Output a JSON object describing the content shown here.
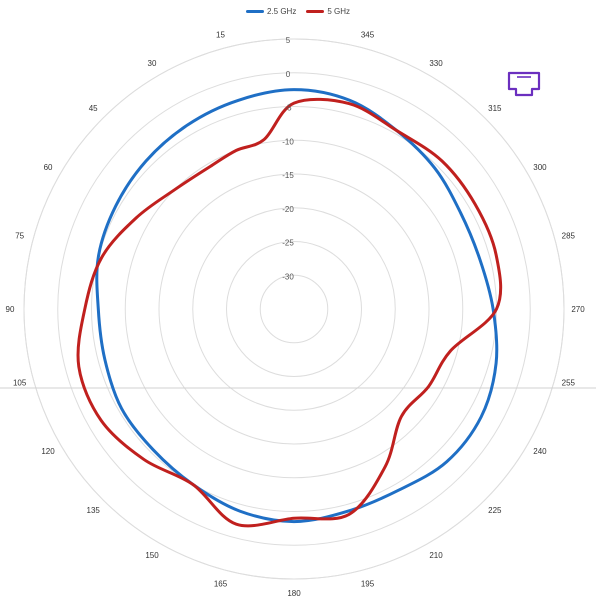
{
  "chart_data": {
    "type": "polar-line",
    "title": "",
    "radial_ticks": [
      "5",
      "0",
      "-5",
      "-10",
      "-15",
      "-20",
      "-25",
      "-30"
    ],
    "radial_range": [
      -35,
      5
    ],
    "angle_labels": [
      "345",
      "330",
      "315",
      "300",
      "285",
      "270",
      "255",
      "240",
      "225",
      "210",
      "195",
      "180",
      "165",
      "150",
      "135",
      "120",
      "105",
      "90",
      "75",
      "60",
      "45",
      "30",
      "15"
    ],
    "legend_placement": "top-center",
    "grid": true,
    "series": [
      {
        "name": "2.5 GHz",
        "color": "#1f6fc5",
        "angles": [
          0,
          15,
          30,
          45,
          60,
          75,
          90,
          105,
          120,
          135,
          150,
          165,
          180,
          195,
          210,
          225,
          240,
          255,
          270,
          285,
          300,
          315,
          330,
          345
        ],
        "values": [
          -2.5,
          -3,
          -3.5,
          -4,
          -4.5,
          -5,
          -6,
          -6,
          -5.5,
          -5.5,
          -5,
          -4,
          -3.5,
          -4,
          -4,
          -3,
          -3,
          -4,
          -5.5,
          -6.5,
          -6.5,
          -5.5,
          -4.5,
          -3
        ]
      },
      {
        "name": "5 GHz",
        "color": "#c0201e",
        "angles": [
          0,
          10,
          20,
          30,
          45,
          60,
          75,
          90,
          105,
          120,
          135,
          150,
          165,
          180,
          195,
          210,
          225,
          240,
          255,
          270,
          285,
          300,
          315,
          330,
          345
        ],
        "values": [
          -4.5,
          -9.5,
          -10,
          -10.5,
          -10,
          -8,
          -5.5,
          -4,
          -2,
          -2,
          -3.5,
          -5,
          -2,
          -4,
          -3.5,
          -8,
          -12.5,
          -12,
          -11,
          -5,
          -4,
          -4,
          -4,
          -4.5,
          -3.5
        ]
      }
    ]
  },
  "icon": "ethernet-port-icon",
  "icon_color": "#6b2fbf"
}
